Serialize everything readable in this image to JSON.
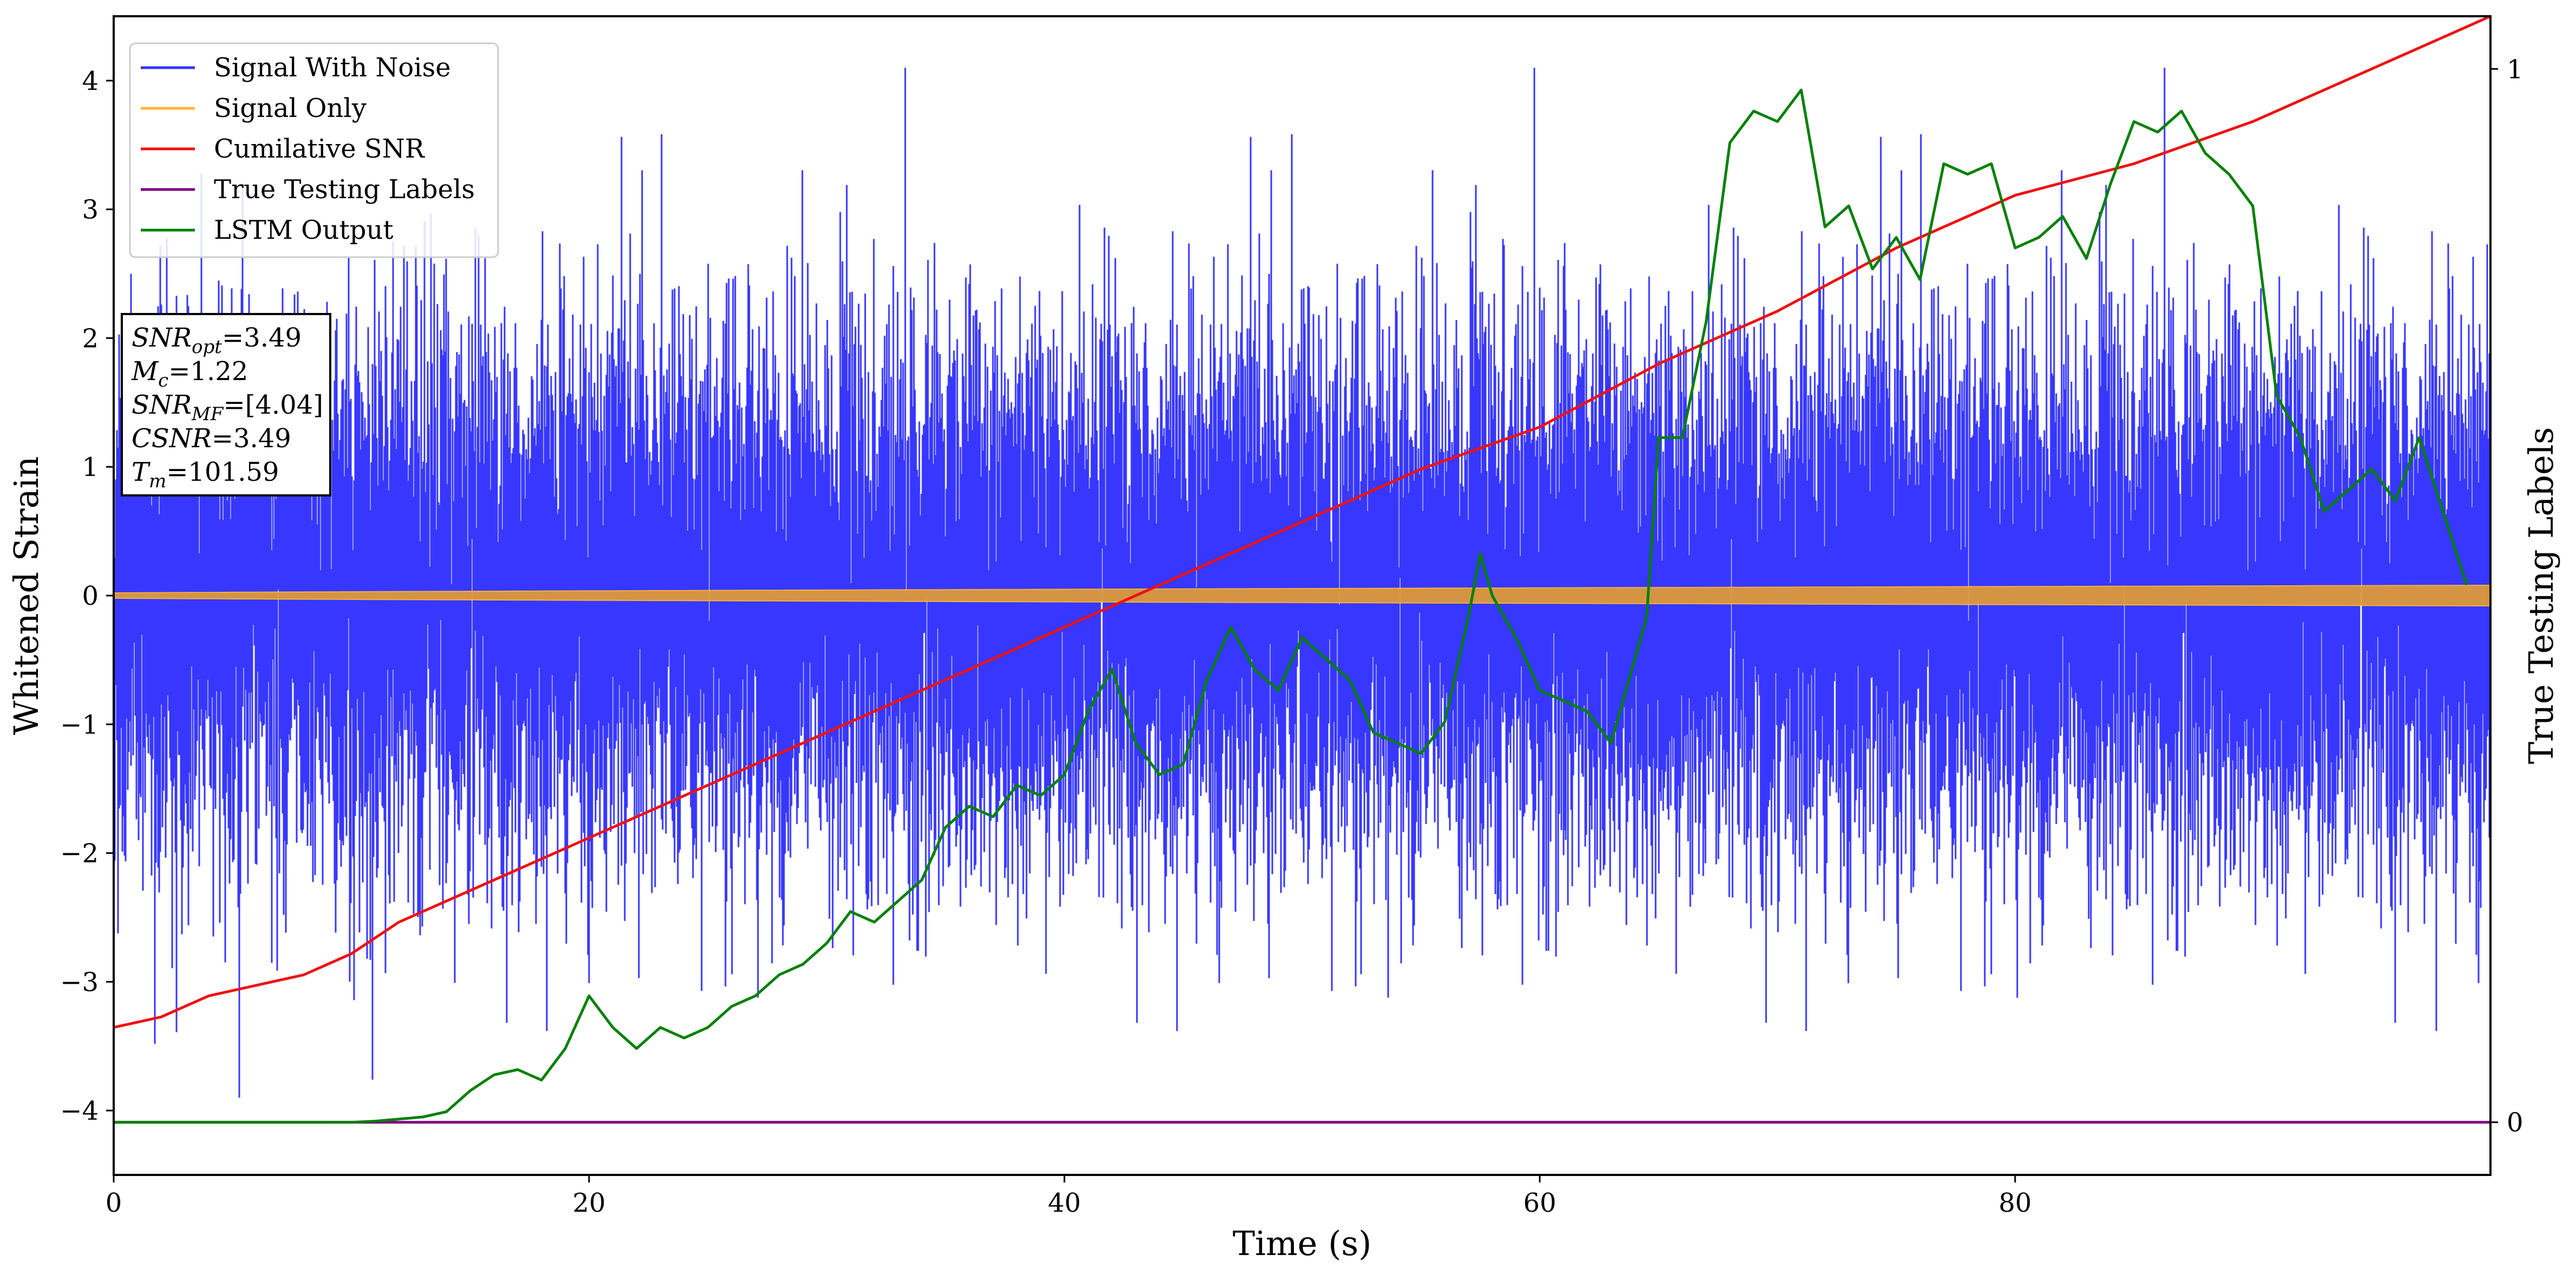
{
  "chart_data": {
    "type": "line",
    "xlabel": "Time (s)",
    "ylabel": "Whitened Strain",
    "y2label": "True Testing Labels",
    "xlim": [
      0,
      100
    ],
    "ylim": [
      -4.5,
      4.5
    ],
    "y2lim": [
      -0.05,
      1.05
    ],
    "xticks": [
      0,
      20,
      40,
      60,
      80
    ],
    "yticks": [
      -4,
      -3,
      -2,
      -1,
      0,
      1,
      2,
      3,
      4
    ],
    "y2ticks": [
      0,
      1
    ],
    "grid": false,
    "legend_position": "top-left",
    "annotation": {
      "lines": [
        {
          "sym": "SNR",
          "sub": "opt",
          "val": "=3.49"
        },
        {
          "sym": "M",
          "sub": "c",
          "val": "=1.22"
        },
        {
          "sym": "SNR",
          "sub": "MF",
          "val": "=[4.04]"
        },
        {
          "sym": "CSNR",
          "sub": "",
          "val": "=3.49"
        },
        {
          "sym": "T",
          "sub": "m",
          "val": "=101.59"
        }
      ]
    },
    "series": [
      {
        "name": "Signal With Noise",
        "color": "#3333ff",
        "axis": "left",
        "approx_std": 1.0,
        "approx_range": [
          -3.9,
          4.1
        ]
      },
      {
        "name": "Signal Only",
        "color": "#ffb733",
        "axis": "left",
        "amplitude_start": 0.02,
        "amplitude_end": 0.08
      },
      {
        "name": "Cumilative SNR",
        "color": "#ee1111",
        "axis": "right",
        "x": [
          0,
          2,
          4,
          6,
          8,
          10,
          12,
          14,
          16,
          18,
          20,
          25,
          30,
          35,
          40,
          45,
          50,
          55,
          60,
          65,
          70,
          75,
          80,
          85,
          90,
          95,
          100
        ],
        "y": [
          0.09,
          0.1,
          0.12,
          0.13,
          0.14,
          0.16,
          0.19,
          0.21,
          0.23,
          0.25,
          0.27,
          0.32,
          0.37,
          0.42,
          0.47,
          0.52,
          0.57,
          0.62,
          0.66,
          0.72,
          0.77,
          0.83,
          0.88,
          0.91,
          0.95,
          1.0,
          1.05
        ]
      },
      {
        "name": "True Testing Labels",
        "color": "#800080",
        "axis": "right",
        "x": [
          0,
          100
        ],
        "y": [
          0,
          0
        ]
      },
      {
        "name": "LSTM Output",
        "color": "#008000",
        "axis": "right",
        "x": [
          0,
          10,
          11,
          12,
          13,
          14,
          15,
          16,
          17,
          18,
          19,
          20,
          21,
          22,
          23,
          24,
          25,
          26,
          27,
          28,
          29,
          30,
          31,
          32,
          33,
          34,
          35,
          36,
          37,
          38,
          39,
          40,
          41,
          42,
          43,
          44,
          45,
          46,
          47,
          48,
          49,
          50,
          51,
          52,
          53,
          54,
          55,
          56,
          57,
          57.5,
          58,
          59,
          60,
          61,
          62,
          63,
          64,
          64.5,
          65,
          66,
          67,
          68,
          69,
          70,
          71,
          72,
          73,
          74,
          75,
          76,
          77,
          78,
          79,
          80,
          81,
          82,
          83,
          84,
          85,
          86,
          87,
          88,
          89,
          90,
          91,
          92,
          93,
          94,
          95,
          96,
          97,
          98,
          99
        ],
        "y": [
          0,
          0,
          0.001,
          0.003,
          0.005,
          0.01,
          0.03,
          0.045,
          0.05,
          0.04,
          0.07,
          0.12,
          0.09,
          0.07,
          0.09,
          0.08,
          0.09,
          0.11,
          0.12,
          0.14,
          0.15,
          0.17,
          0.2,
          0.19,
          0.21,
          0.23,
          0.28,
          0.3,
          0.29,
          0.32,
          0.31,
          0.33,
          0.39,
          0.43,
          0.36,
          0.33,
          0.34,
          0.42,
          0.47,
          0.43,
          0.41,
          0.46,
          0.44,
          0.42,
          0.37,
          0.36,
          0.35,
          0.38,
          0.48,
          0.54,
          0.5,
          0.46,
          0.41,
          0.4,
          0.39,
          0.36,
          0.44,
          0.48,
          0.65,
          0.65,
          0.76,
          0.93,
          0.96,
          0.95,
          0.98,
          0.85,
          0.87,
          0.81,
          0.84,
          0.8,
          0.91,
          0.9,
          0.91,
          0.83,
          0.84,
          0.86,
          0.82,
          0.89,
          0.95,
          0.94,
          0.96,
          0.92,
          0.9,
          0.87,
          0.69,
          0.65,
          0.58,
          0.6,
          0.62,
          0.59,
          0.65,
          0.58,
          0.51
        ]
      }
    ]
  }
}
